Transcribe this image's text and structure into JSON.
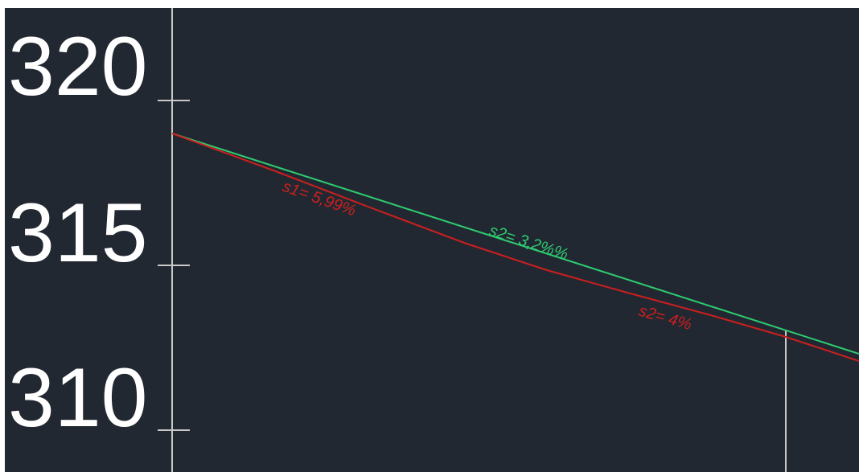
{
  "drawing": {
    "background_color": "#222831",
    "frame_color": "#ffffff",
    "axis_color": "#c8c8c8",
    "axis": {
      "labels": [
        "320",
        "315",
        "310"
      ],
      "elevations": [
        320,
        315,
        310
      ]
    },
    "profiles": [
      {
        "id": "design",
        "color": "#2ecc71",
        "segment_labels": [
          "s2= 3,2%%"
        ]
      },
      {
        "id": "terrain",
        "color": "#cc1f1f",
        "segment_labels": [
          "s1= 5,99%",
          "s2= 4%"
        ]
      }
    ]
  }
}
